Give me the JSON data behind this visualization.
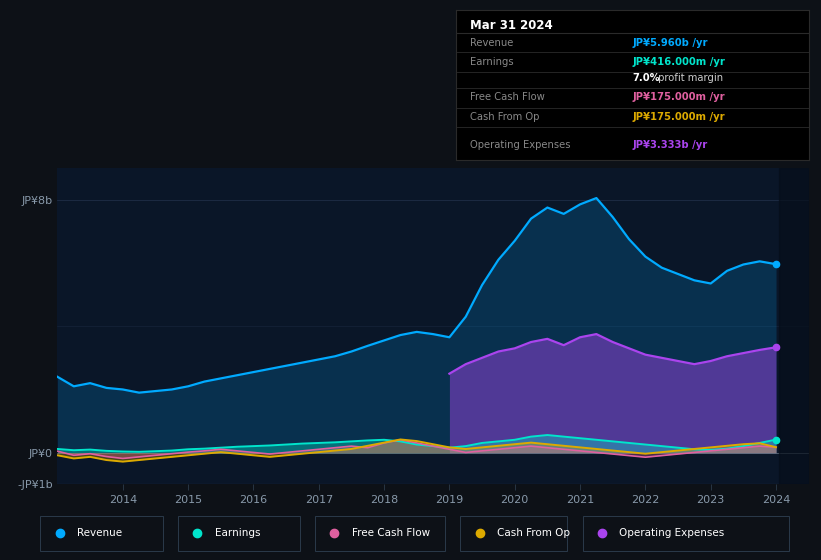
{
  "bg_color": "#0d1117",
  "plot_bg_color": "#0a1628",
  "ylim": [
    -1000000000.0,
    9000000000.0
  ],
  "years": [
    2013.0,
    2013.25,
    2013.5,
    2013.75,
    2014.0,
    2014.25,
    2014.5,
    2014.75,
    2015.0,
    2015.25,
    2015.5,
    2015.75,
    2016.0,
    2016.25,
    2016.5,
    2016.75,
    2017.0,
    2017.25,
    2017.5,
    2017.75,
    2018.0,
    2018.25,
    2018.5,
    2018.75,
    2019.0,
    2019.25,
    2019.5,
    2019.75,
    2020.0,
    2020.25,
    2020.5,
    2020.75,
    2021.0,
    2021.25,
    2021.5,
    2021.75,
    2022.0,
    2022.25,
    2022.5,
    2022.75,
    2023.0,
    2023.25,
    2023.5,
    2023.75,
    2024.0
  ],
  "revenue": [
    2400000000.0,
    2100000000.0,
    2200000000.0,
    2050000000.0,
    2000000000.0,
    1900000000.0,
    1950000000.0,
    2000000000.0,
    2100000000.0,
    2250000000.0,
    2350000000.0,
    2450000000.0,
    2550000000.0,
    2650000000.0,
    2750000000.0,
    2850000000.0,
    2950000000.0,
    3050000000.0,
    3200000000.0,
    3380000000.0,
    3550000000.0,
    3720000000.0,
    3820000000.0,
    3750000000.0,
    3650000000.0,
    4300000000.0,
    5300000000.0,
    6100000000.0,
    6700000000.0,
    7400000000.0,
    7750000000.0,
    7550000000.0,
    7850000000.0,
    8050000000.0,
    7450000000.0,
    6750000000.0,
    6200000000.0,
    5850000000.0,
    5650000000.0,
    5450000000.0,
    5350000000.0,
    5750000000.0,
    5950000000.0,
    6050000000.0,
    5960000000.0
  ],
  "earnings": [
    120000000.0,
    80000000.0,
    100000000.0,
    60000000.0,
    40000000.0,
    30000000.0,
    50000000.0,
    70000000.0,
    110000000.0,
    130000000.0,
    160000000.0,
    190000000.0,
    210000000.0,
    230000000.0,
    260000000.0,
    290000000.0,
    310000000.0,
    330000000.0,
    360000000.0,
    390000000.0,
    410000000.0,
    360000000.0,
    260000000.0,
    210000000.0,
    160000000.0,
    210000000.0,
    310000000.0,
    360000000.0,
    410000000.0,
    510000000.0,
    560000000.0,
    510000000.0,
    460000000.0,
    410000000.0,
    360000000.0,
    310000000.0,
    260000000.0,
    210000000.0,
    160000000.0,
    110000000.0,
    90000000.0,
    130000000.0,
    210000000.0,
    310000000.0,
    416000000.0
  ],
  "free_cash_flow": [
    50000000.0,
    -80000000.0,
    -30000000.0,
    -120000000.0,
    -180000000.0,
    -130000000.0,
    -80000000.0,
    -30000000.0,
    20000000.0,
    60000000.0,
    110000000.0,
    60000000.0,
    10000000.0,
    -40000000.0,
    10000000.0,
    60000000.0,
    110000000.0,
    160000000.0,
    210000000.0,
    160000000.0,
    310000000.0,
    410000000.0,
    310000000.0,
    210000000.0,
    110000000.0,
    10000000.0,
    60000000.0,
    110000000.0,
    160000000.0,
    210000000.0,
    160000000.0,
    110000000.0,
    60000000.0,
    10000000.0,
    -40000000.0,
    -90000000.0,
    -140000000.0,
    -90000000.0,
    -40000000.0,
    10000000.0,
    60000000.0,
    110000000.0,
    160000000.0,
    210000000.0,
    175000000.0
  ],
  "cash_from_op": [
    -80000000.0,
    -180000000.0,
    -130000000.0,
    -230000000.0,
    -280000000.0,
    -230000000.0,
    -180000000.0,
    -130000000.0,
    -80000000.0,
    -30000000.0,
    20000000.0,
    -30000000.0,
    -80000000.0,
    -130000000.0,
    -80000000.0,
    -30000000.0,
    20000000.0,
    70000000.0,
    120000000.0,
    220000000.0,
    320000000.0,
    420000000.0,
    370000000.0,
    270000000.0,
    170000000.0,
    120000000.0,
    170000000.0,
    220000000.0,
    270000000.0,
    320000000.0,
    270000000.0,
    220000000.0,
    170000000.0,
    120000000.0,
    70000000.0,
    20000000.0,
    -30000000.0,
    20000000.0,
    70000000.0,
    120000000.0,
    170000000.0,
    220000000.0,
    270000000.0,
    300000000.0,
    175000000.0
  ],
  "op_expenses": [
    0,
    0,
    0,
    0,
    0,
    0,
    0,
    0,
    0,
    0,
    0,
    0,
    0,
    0,
    0,
    0,
    0,
    0,
    0,
    0,
    0,
    0,
    0,
    0,
    2500000000.0,
    2800000000.0,
    3000000000.0,
    3200000000.0,
    3300000000.0,
    3500000000.0,
    3600000000.0,
    3400000000.0,
    3650000000.0,
    3750000000.0,
    3500000000.0,
    3300000000.0,
    3100000000.0,
    3000000000.0,
    2900000000.0,
    2800000000.0,
    2900000000.0,
    3050000000.0,
    3150000000.0,
    3250000000.0,
    3333000000.0
  ],
  "revenue_color": "#00aaff",
  "earnings_color": "#00e5cc",
  "fcf_color": "#e060a0",
  "cashop_color": "#ddaa00",
  "opex_color": "#aa44ee",
  "xlim": [
    2013.0,
    2024.5
  ],
  "xticks": [
    2014,
    2015,
    2016,
    2017,
    2018,
    2019,
    2020,
    2021,
    2022,
    2023,
    2024
  ],
  "ytick_labels": [
    "-JP¥1b",
    "JP¥0",
    "JP¥8b"
  ],
  "legend_items": [
    {
      "label": "Revenue",
      "color": "#00aaff"
    },
    {
      "label": "Earnings",
      "color": "#00e5cc"
    },
    {
      "label": "Free Cash Flow",
      "color": "#e060a0"
    },
    {
      "label": "Cash From Op",
      "color": "#ddaa00"
    },
    {
      "label": "Operating Expenses",
      "color": "#aa44ee"
    }
  ]
}
